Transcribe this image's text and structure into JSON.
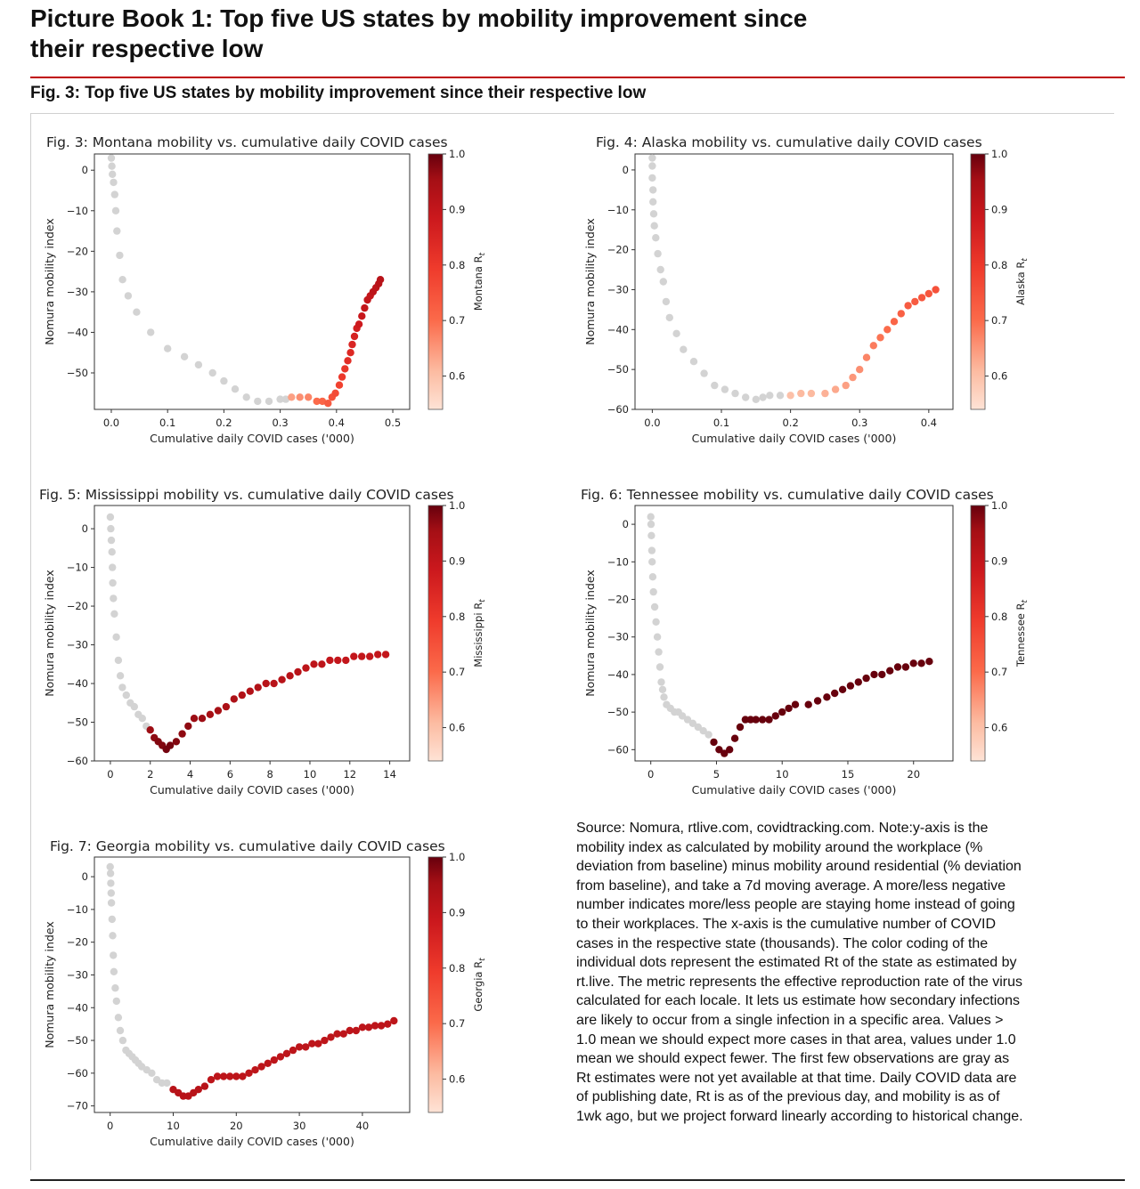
{
  "page": {
    "title": "Picture Book 1: Top five US states by mobility improvement since their respective low",
    "figure_caption": "Fig. 3: Top five US states by mobility improvement since their respective low",
    "source_note": "Source: Nomura, rtlive.com, covidtracking.com. Note:y-axis is the mobility index as calculated by mobility around the workplace (% deviation from baseline) minus mobility around residential (% deviation from baseline), and take a 7d moving average. A more/less negative number indicates more/less people are staying home instead of going to their workplaces. The x-axis is the cumulative number of COVID cases in the respective state (thousands). The color coding of the individual dots represent the estimated Rt of the state as estimated by rt.live. The metric represents the effective reproduction rate of the virus calculated for each locale. It lets us estimate how secondary infections are likely to occur from a single infection in a specific area. Values > 1.0 mean we should expect more cases in that area, values under 1.0 mean we should expect fewer. The first few observations are gray as Rt estimates were not yet available at that time. Daily COVID data are of publishing date, Rt is as of the previous day, and mobility is as of 1wk ago, but we project forward linearly according to historical change."
  },
  "colors": {
    "accent_rule": "#c00000",
    "na_gray": "#d3d3d3",
    "cmap_low": "#fee3d6",
    "cmap_mid": "#ef3b2c",
    "cmap_high": "#67000d"
  },
  "chart_data": [
    {
      "type": "scatter",
      "title": "Fig. 3: Montana mobility vs. cumulative daily COVID cases",
      "xlabel": "Cumulative daily COVID cases ('000)",
      "ylabel": "Nomura mobility index",
      "colorbar_label": "Montana R",
      "xlim": [
        -0.03,
        0.53
      ],
      "ylim": [
        -59,
        4
      ],
      "xticks": [
        0.0,
        0.1,
        0.2,
        0.3,
        0.4,
        0.5
      ],
      "xtick_labels": [
        "0.0",
        "0.1",
        "0.2",
        "0.3",
        "0.4",
        "0.5"
      ],
      "yticks": [
        0,
        -10,
        -20,
        -30,
        -40,
        -50
      ],
      "yticks_labels": [
        "0",
        "−10",
        "−20",
        "−30",
        "−40",
        "−50"
      ],
      "clim": [
        0.54,
        1.0
      ],
      "cticks": [
        0.6,
        0.7,
        0.8,
        0.9,
        1.0
      ],
      "cticks_labels": [
        "0.6",
        "0.7",
        "0.8",
        "0.9",
        "1.0"
      ],
      "grid": false,
      "x": [
        0.0,
        0.001,
        0.002,
        0.004,
        0.006,
        0.008,
        0.01,
        0.015,
        0.02,
        0.03,
        0.045,
        0.07,
        0.1,
        0.13,
        0.155,
        0.18,
        0.2,
        0.22,
        0.24,
        0.26,
        0.28,
        0.3,
        0.31,
        0.32,
        0.335,
        0.35,
        0.365,
        0.375,
        0.385,
        0.392,
        0.398,
        0.405,
        0.41,
        0.415,
        0.42,
        0.425,
        0.428,
        0.432,
        0.436,
        0.44,
        0.445,
        0.45,
        0.455,
        0.46,
        0.465,
        0.47,
        0.475,
        0.478
      ],
      "y": [
        3,
        1,
        -1,
        -3,
        -6,
        -10,
        -15,
        -21,
        -27,
        -31,
        -35,
        -40,
        -44,
        -46,
        -48,
        -50,
        -52,
        -54,
        -56,
        -57,
        -57,
        -56.5,
        -56.5,
        -56,
        -56,
        -56,
        -57,
        -57,
        -57.5,
        -56,
        -55,
        -53,
        -51,
        -49,
        -47,
        -45,
        -43,
        -41,
        -39,
        -38,
        -36,
        -34,
        -32,
        -31,
        -30,
        -29,
        -28,
        -27
      ],
      "rt": [
        null,
        null,
        null,
        null,
        null,
        null,
        null,
        null,
        null,
        null,
        null,
        null,
        null,
        null,
        null,
        null,
        null,
        null,
        null,
        null,
        null,
        null,
        null,
        0.64,
        0.66,
        0.67,
        0.7,
        0.71,
        0.73,
        0.75,
        0.76,
        0.78,
        0.8,
        0.81,
        0.83,
        0.84,
        0.85,
        0.86,
        0.87,
        0.88,
        0.89,
        0.9,
        0.9,
        0.9,
        0.91,
        0.91,
        0.92,
        0.92
      ]
    },
    {
      "type": "scatter",
      "title": "Fig. 4: Alaska mobility vs. cumulative daily COVID cases",
      "xlabel": "Cumulative daily COVID cases ('000)",
      "ylabel": "Nomura mobility index",
      "colorbar_label": "Alaska R",
      "xlim": [
        -0.025,
        0.435
      ],
      "ylim": [
        -60,
        4
      ],
      "xticks": [
        0.0,
        0.1,
        0.2,
        0.3,
        0.4
      ],
      "xtick_labels": [
        "0.0",
        "0.1",
        "0.2",
        "0.3",
        "0.4"
      ],
      "yticks": [
        0,
        -10,
        -20,
        -30,
        -40,
        -50,
        -60
      ],
      "yticks_labels": [
        "0",
        "−10",
        "−20",
        "−30",
        "−40",
        "−50",
        "−60"
      ],
      "clim": [
        0.54,
        1.0
      ],
      "cticks": [
        0.6,
        0.7,
        0.8,
        0.9,
        1.0
      ],
      "cticks_labels": [
        "0.6",
        "0.7",
        "0.8",
        "0.9",
        "1.0"
      ],
      "grid": false,
      "x": [
        0.0,
        0.0,
        0.0,
        0.001,
        0.001,
        0.002,
        0.003,
        0.005,
        0.008,
        0.012,
        0.016,
        0.02,
        0.025,
        0.035,
        0.045,
        0.06,
        0.075,
        0.09,
        0.105,
        0.12,
        0.135,
        0.15,
        0.16,
        0.17,
        0.185,
        0.2,
        0.215,
        0.23,
        0.25,
        0.265,
        0.28,
        0.29,
        0.3,
        0.31,
        0.32,
        0.33,
        0.34,
        0.35,
        0.36,
        0.37,
        0.38,
        0.39,
        0.4,
        0.41
      ],
      "y": [
        3,
        1,
        -2,
        -5,
        -8,
        -11,
        -14,
        -17,
        -21,
        -25,
        -28,
        -33,
        -37,
        -41,
        -45,
        -48,
        -51,
        -54,
        -55,
        -56,
        -57,
        -57.5,
        -57,
        -56.5,
        -56.5,
        -56.5,
        -56,
        -56,
        -56,
        -55,
        -54,
        -52,
        -50,
        -47,
        -44,
        -42,
        -40,
        -38,
        -36,
        -34,
        -33,
        -32,
        -31,
        -30
      ],
      "rt": [
        null,
        null,
        null,
        null,
        null,
        null,
        null,
        null,
        null,
        null,
        null,
        null,
        null,
        null,
        null,
        null,
        null,
        null,
        null,
        null,
        null,
        null,
        null,
        null,
        null,
        0.6,
        0.61,
        0.61,
        0.62,
        0.63,
        0.64,
        0.65,
        0.66,
        0.67,
        0.68,
        0.69,
        0.7,
        0.71,
        0.72,
        0.73,
        0.73,
        0.74,
        0.74,
        0.75
      ]
    },
    {
      "type": "scatter",
      "title": "Fig. 5: Mississippi mobility vs. cumulative daily COVID cases",
      "xlabel": "Cumulative daily COVID cases ('000)",
      "ylabel": "Nomura mobility index",
      "colorbar_label": "Mississippi R",
      "xlim": [
        -0.8,
        15.0
      ],
      "ylim": [
        -60,
        6
      ],
      "xticks": [
        0,
        2,
        4,
        6,
        8,
        10,
        12,
        14
      ],
      "xtick_labels": [
        "0",
        "2",
        "4",
        "6",
        "8",
        "10",
        "12",
        "14"
      ],
      "yticks": [
        0,
        -10,
        -20,
        -30,
        -40,
        -50,
        -60
      ],
      "yticks_labels": [
        "0",
        "−10",
        "−20",
        "−30",
        "−40",
        "−50",
        "−60"
      ],
      "clim": [
        0.54,
        1.0
      ],
      "cticks": [
        0.6,
        0.7,
        0.8,
        0.9,
        1.0
      ],
      "cticks_labels": [
        "0.6",
        "0.7",
        "0.8",
        "0.9",
        "1.0"
      ],
      "grid": false,
      "x": [
        0.0,
        0.02,
        0.05,
        0.08,
        0.1,
        0.12,
        0.15,
        0.2,
        0.3,
        0.4,
        0.5,
        0.6,
        0.8,
        1.0,
        1.2,
        1.4,
        1.6,
        1.8,
        2.0,
        2.2,
        2.4,
        2.6,
        2.8,
        3.0,
        3.3,
        3.6,
        3.9,
        4.2,
        4.6,
        5.0,
        5.4,
        5.8,
        6.2,
        6.6,
        7.0,
        7.4,
        7.8,
        8.2,
        8.6,
        9.0,
        9.4,
        9.8,
        10.2,
        10.6,
        11.0,
        11.4,
        11.8,
        12.2,
        12.6,
        13.0,
        13.4,
        13.8
      ],
      "y": [
        3,
        0,
        -3,
        -6,
        -10,
        -14,
        -18,
        -22,
        -28,
        -34,
        -38,
        -41,
        -43,
        -45,
        -46,
        -48,
        -49,
        -51,
        -52,
        -54,
        -55,
        -56,
        -57,
        -56,
        -55,
        -53,
        -51,
        -49,
        -49,
        -48,
        -47,
        -46,
        -44,
        -43,
        -42,
        -41,
        -40,
        -40,
        -39,
        -38,
        -37,
        -36,
        -35,
        -35,
        -34,
        -34,
        -34,
        -33,
        -33,
        -33,
        -32.5,
        -32.5
      ],
      "rt": [
        null,
        null,
        null,
        null,
        null,
        null,
        null,
        null,
        null,
        null,
        null,
        null,
        null,
        null,
        null,
        null,
        null,
        null,
        0.96,
        0.97,
        0.98,
        0.98,
        0.99,
        0.99,
        0.98,
        0.97,
        0.97,
        0.96,
        0.96,
        0.95,
        0.95,
        0.94,
        0.94,
        0.93,
        0.93,
        0.93,
        0.92,
        0.92,
        0.92,
        0.92,
        0.92,
        0.91,
        0.91,
        0.91,
        0.9,
        0.9,
        0.9,
        0.9,
        0.9,
        0.9,
        0.9,
        0.9
      ]
    },
    {
      "type": "scatter",
      "title": "Fig. 6: Tennessee mobility vs. cumulative daily COVID cases",
      "xlabel": "Cumulative daily COVID cases ('000)",
      "ylabel": "Nomura mobility index",
      "colorbar_label": "Tennessee R",
      "xlim": [
        -1.2,
        23.0
      ],
      "ylim": [
        -63,
        5
      ],
      "xticks": [
        0,
        5,
        10,
        15,
        20
      ],
      "xtick_labels": [
        "0",
        "5",
        "10",
        "15",
        "20"
      ],
      "yticks": [
        0,
        -10,
        -20,
        -30,
        -40,
        -50,
        -60
      ],
      "yticks_labels": [
        "0",
        "−10",
        "−20",
        "−30",
        "−40",
        "−50",
        "−60"
      ],
      "clim": [
        0.54,
        1.0
      ],
      "cticks": [
        0.6,
        0.7,
        0.8,
        0.9,
        1.0
      ],
      "cticks_labels": [
        "0.6",
        "0.7",
        "0.8",
        "0.9",
        "1.0"
      ],
      "grid": false,
      "x": [
        0.0,
        0.02,
        0.05,
        0.08,
        0.1,
        0.15,
        0.2,
        0.3,
        0.4,
        0.5,
        0.6,
        0.7,
        0.8,
        0.9,
        1.0,
        1.2,
        1.5,
        1.8,
        2.1,
        2.4,
        2.8,
        3.2,
        3.6,
        4.0,
        4.4,
        4.8,
        5.2,
        5.6,
        6.0,
        6.4,
        6.8,
        7.2,
        7.6,
        8.0,
        8.5,
        9.0,
        9.5,
        10.0,
        10.5,
        11.0,
        12.0,
        12.7,
        13.4,
        14.0,
        14.6,
        15.2,
        15.8,
        16.4,
        17.0,
        17.6,
        18.2,
        18.8,
        19.4,
        20.0,
        20.6,
        21.2
      ],
      "y": [
        2,
        0,
        -3,
        -7,
        -10,
        -14,
        -18,
        -22,
        -26,
        -30,
        -34,
        -38,
        -42,
        -44,
        -46,
        -48,
        -49,
        -50,
        -50,
        -51,
        -52,
        -53,
        -54,
        -55,
        -56,
        -58,
        -60,
        -61,
        -60,
        -57,
        -54,
        -52,
        -52,
        -52,
        -52,
        -52,
        -51,
        -50,
        -49,
        -48,
        -48,
        -47,
        -46,
        -45,
        -44,
        -43,
        -42,
        -41,
        -40,
        -40,
        -39,
        -38,
        -38,
        -37,
        -37,
        -36.5
      ],
      "rt": [
        null,
        null,
        null,
        null,
        null,
        null,
        null,
        null,
        null,
        null,
        null,
        null,
        null,
        null,
        null,
        null,
        null,
        null,
        null,
        null,
        null,
        null,
        null,
        null,
        null,
        1.0,
        1.0,
        1.0,
        1.0,
        1.0,
        1.0,
        1.0,
        1.0,
        1.0,
        1.0,
        1.0,
        1.0,
        1.0,
        1.0,
        1.0,
        1.0,
        1.0,
        1.0,
        1.0,
        1.0,
        1.0,
        1.0,
        1.0,
        1.0,
        1.0,
        1.0,
        1.0,
        1.0,
        1.0,
        1.0,
        1.0
      ]
    },
    {
      "type": "scatter",
      "title": "Fig. 7: Georgia mobility vs. cumulative daily COVID cases",
      "xlabel": "Cumulative daily COVID cases ('000)",
      "ylabel": "Nomura mobility index",
      "colorbar_label": "Georgia R",
      "xlim": [
        -2.5,
        47.5
      ],
      "ylim": [
        -72,
        6
      ],
      "xticks": [
        0,
        10,
        20,
        30,
        40
      ],
      "xtick_labels": [
        "0",
        "10",
        "20",
        "30",
        "40"
      ],
      "yticks": [
        0,
        -10,
        -20,
        -30,
        -40,
        -50,
        -60,
        -70
      ],
      "yticks_labels": [
        "0",
        "−10",
        "−20",
        "−30",
        "−40",
        "−50",
        "−60",
        "−70"
      ],
      "clim": [
        0.54,
        1.0
      ],
      "cticks": [
        0.6,
        0.7,
        0.8,
        0.9,
        1.0
      ],
      "cticks_labels": [
        "0.6",
        "0.7",
        "0.8",
        "0.9",
        "1.0"
      ],
      "grid": false,
      "x": [
        0.0,
        0.05,
        0.1,
        0.15,
        0.2,
        0.3,
        0.4,
        0.5,
        0.6,
        0.8,
        1.0,
        1.3,
        1.6,
        2.0,
        2.5,
        3.0,
        3.5,
        4.0,
        4.5,
        5.0,
        5.8,
        6.6,
        7.4,
        8.2,
        9.0,
        10.0,
        10.8,
        11.6,
        12.4,
        13.2,
        14.0,
        15.0,
        16.0,
        17.0,
        18.0,
        19.0,
        20.0,
        21.0,
        22.0,
        23.0,
        24.0,
        25.0,
        26.0,
        27.0,
        28.0,
        29.0,
        30.0,
        31.0,
        32.0,
        33.0,
        34.0,
        35.0,
        36.0,
        37.0,
        38.0,
        39.0,
        40.0,
        41.0,
        42.0,
        43.0,
        44.0,
        45.0
      ],
      "y": [
        3,
        1,
        -2,
        -5,
        -8,
        -13,
        -18,
        -24,
        -29,
        -34,
        -38,
        -43,
        -47,
        -50,
        -53,
        -54,
        -55,
        -56,
        -57,
        -58,
        -59,
        -60,
        -62,
        -63,
        -63,
        -65,
        -66,
        -67,
        -67,
        -66,
        -65,
        -64,
        -62,
        -61,
        -61,
        -61,
        -61,
        -61,
        -60,
        -59,
        -58,
        -57,
        -56,
        -55,
        -54,
        -53,
        -52,
        -52,
        -51,
        -51,
        -50,
        -49,
        -48,
        -48,
        -47,
        -47,
        -46,
        -46,
        -45.5,
        -45.5,
        -45,
        -44
      ],
      "rt": [
        null,
        null,
        null,
        null,
        null,
        null,
        null,
        null,
        null,
        null,
        null,
        null,
        null,
        null,
        null,
        null,
        null,
        null,
        null,
        null,
        null,
        null,
        null,
        null,
        null,
        0.92,
        0.92,
        0.92,
        0.92,
        0.92,
        0.92,
        0.92,
        0.91,
        0.91,
        0.91,
        0.91,
        0.91,
        0.91,
        0.91,
        0.91,
        0.91,
        0.91,
        0.91,
        0.91,
        0.91,
        0.91,
        0.91,
        0.91,
        0.91,
        0.91,
        0.91,
        0.91,
        0.91,
        0.91,
        0.91,
        0.91,
        0.91,
        0.91,
        0.91,
        0.91,
        0.91,
        0.91
      ]
    }
  ]
}
